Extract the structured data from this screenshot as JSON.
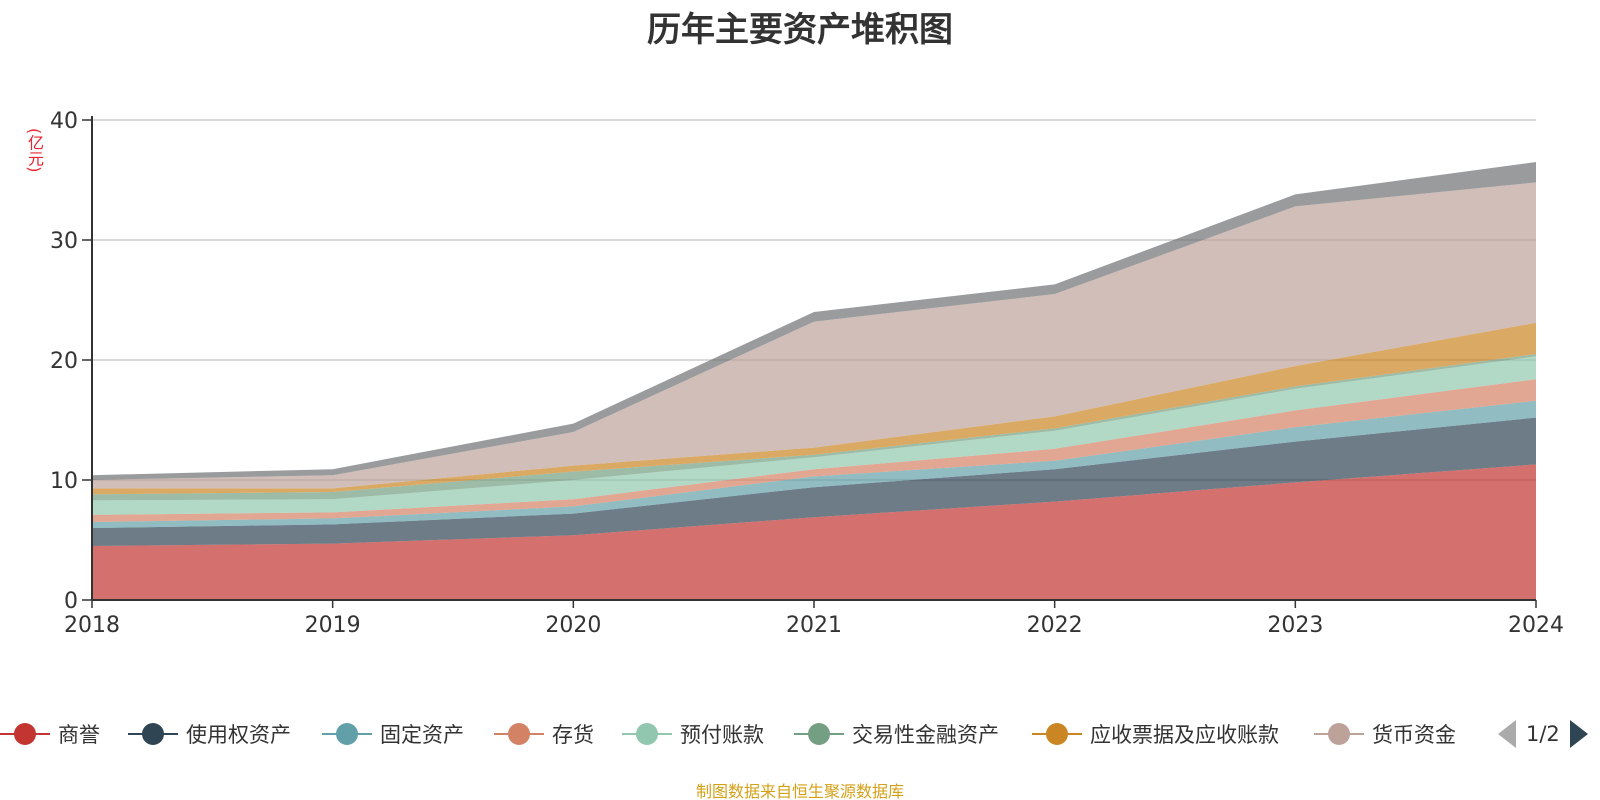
{
  "title": "历年主要资产堆积图",
  "y_unit": "(亿元)",
  "source_note": "制图数据来自恒生聚源数据库",
  "legend_page": "1/2",
  "chart_data": {
    "type": "area",
    "stacked": true,
    "title": "历年主要资产堆积图",
    "xlabel": "",
    "ylabel": "(亿元)",
    "ylim": [
      0,
      40
    ],
    "yticks": [
      0,
      10,
      20,
      30,
      40
    ],
    "grid": true,
    "legend_position": "bottom",
    "categories": [
      "2018",
      "2019",
      "2020",
      "2021",
      "2022",
      "2023",
      "2024"
    ],
    "series": [
      {
        "name": "商誉",
        "color": "#c23531",
        "values": [
          4.5,
          4.7,
          5.4,
          6.9,
          8.2,
          9.8,
          11.3
        ]
      },
      {
        "name": "使用权资产",
        "color": "#2f4554",
        "values": [
          1.5,
          1.6,
          1.8,
          2.5,
          2.7,
          3.4,
          3.9
        ]
      },
      {
        "name": "固定资产",
        "color": "#61a0a8",
        "values": [
          0.5,
          0.5,
          0.6,
          0.9,
          0.7,
          1.2,
          1.4
        ]
      },
      {
        "name": "存货",
        "color": "#d48265",
        "values": [
          0.6,
          0.5,
          0.6,
          0.6,
          1.0,
          1.4,
          1.8
        ]
      },
      {
        "name": "预付账款",
        "color": "#91c7ae",
        "values": [
          1.2,
          1.1,
          1.6,
          1.0,
          1.5,
          1.8,
          1.9
        ]
      },
      {
        "name": "交易性金融资产",
        "color": "#749f83",
        "values": [
          0.5,
          0.6,
          0.7,
          0.2,
          0.2,
          0.2,
          0.2
        ]
      },
      {
        "name": "应收票据及应收账款",
        "color": "#ca8622",
        "values": [
          0.5,
          0.3,
          0.5,
          0.6,
          1.0,
          1.7,
          2.6
        ]
      },
      {
        "name": "货币资金",
        "color": "#bda29a",
        "values": [
          0.7,
          1.1,
          2.8,
          10.5,
          10.2,
          13.3,
          11.7
        ]
      },
      {
        "name": "",
        "color": "#6e7074",
        "values": [
          0.4,
          0.5,
          0.7,
          0.8,
          0.8,
          1.0,
          1.7
        ]
      }
    ]
  }
}
